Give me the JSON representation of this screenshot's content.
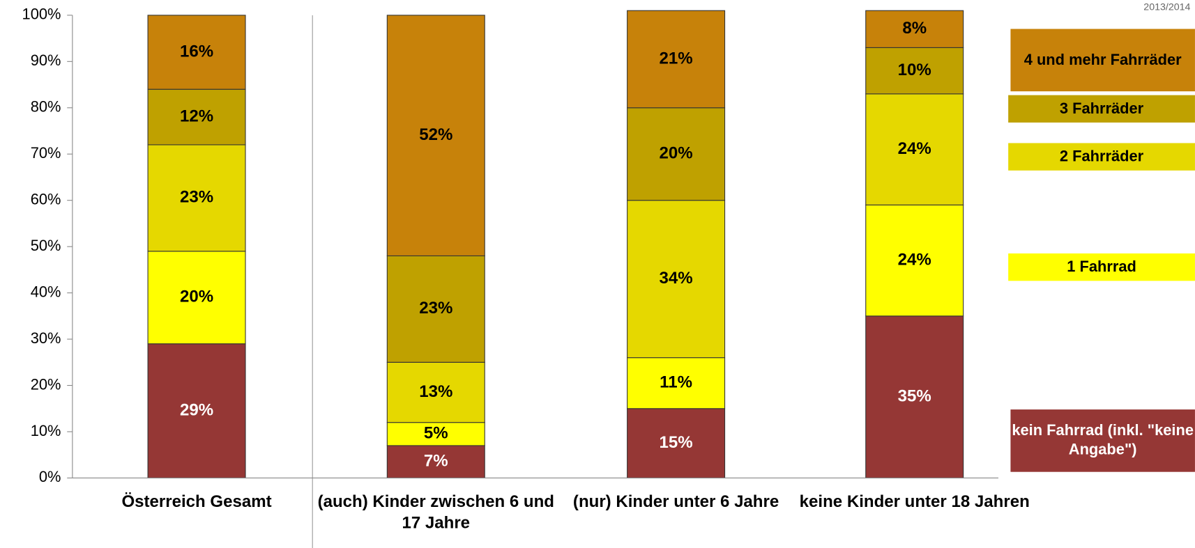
{
  "chart_data": {
    "type": "stacked_bar",
    "note": "2013/2014",
    "categories": [
      "Österreich Gesamt",
      "(auch) Kinder zwischen 6 und 17 Jahre",
      "(nur) Kinder unter  6 Jahre",
      "keine Kinder unter 18 Jahren"
    ],
    "series": [
      {
        "name": "kein Fahrrad (inkl. \"keine Angabe\")",
        "color": "#953735",
        "values": [
          29,
          7,
          15,
          35
        ],
        "value_labels": [
          "29%",
          "7%",
          "15%",
          "35%"
        ]
      },
      {
        "name": "1 Fahrrad",
        "color": "#ffff00",
        "values": [
          20,
          5,
          11,
          24
        ],
        "value_labels": [
          "20%",
          "5%",
          "11%",
          "24%"
        ]
      },
      {
        "name": "2 Fahrräder",
        "color": "#e5d800",
        "values": [
          23,
          13,
          34,
          24
        ],
        "value_labels": [
          "23%",
          "13%",
          "34%",
          "24%"
        ]
      },
      {
        "name": "3 Fahrräder",
        "color": "#bfa100",
        "values": [
          12,
          23,
          20,
          10
        ],
        "value_labels": [
          "12%",
          "23%",
          "20%",
          "10%"
        ]
      },
      {
        "name": "4 und mehr Fahrräder",
        "color": "#c7820a",
        "values": [
          16,
          52,
          21,
          8
        ],
        "value_labels": [
          "16%",
          "52%",
          "21%",
          "8%"
        ]
      }
    ],
    "ylim": [
      0,
      100
    ],
    "yticks": [
      {
        "value": 0,
        "label": "0%"
      },
      {
        "value": 10,
        "label": "10%"
      },
      {
        "value": 20,
        "label": "20%"
      },
      {
        "value": 30,
        "label": "30%"
      },
      {
        "value": 40,
        "label": "40%"
      },
      {
        "value": 50,
        "label": "50%"
      },
      {
        "value": 60,
        "label": "60%"
      },
      {
        "value": 70,
        "label": "70%"
      },
      {
        "value": 80,
        "label": "80%"
      },
      {
        "value": 90,
        "label": "90%"
      },
      {
        "value": 100,
        "label": "100%"
      }
    ]
  }
}
